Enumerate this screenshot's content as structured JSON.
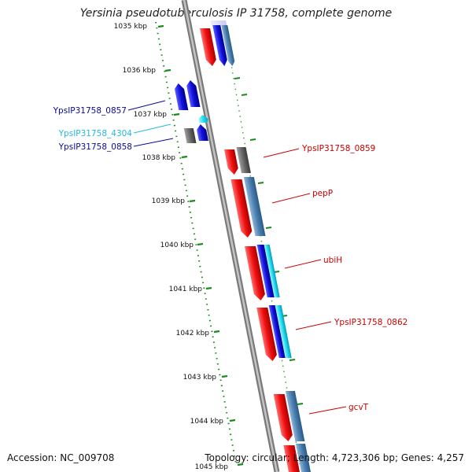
{
  "title": "Yersinia pseudotuberculosis IP 31758, complete genome",
  "footer": {
    "accession": "Accession: NC_009708",
    "stats": "Topology: circular; Length: 4,723,306 bp; Genes: 4,257"
  },
  "colors": {
    "forward_red": "#ee1111",
    "blue": "#1010dd",
    "steel_blue": "#4a7fb0",
    "cyan": "#33ccee",
    "gray": "#666666",
    "tick_green": "#1a8a1a",
    "label_red": "#cc0000",
    "label_blue": "#0a0a99",
    "label_cyan": "#22bbdd"
  },
  "kbp_ticks": [
    "1035 kbp",
    "1036 kbp",
    "1037 kbp",
    "1038 kbp",
    "1039 kbp",
    "1040 kbp",
    "1041 kbp",
    "1042 kbp",
    "1043 kbp",
    "1044 kbp",
    "1045 kbp"
  ],
  "gene_labels": {
    "left": [
      "YpsIP31758_0857",
      "YpsIP31758_4304",
      "YpsIP31758_0858"
    ],
    "right": [
      "YpsIP31758_0859",
      "pepP",
      "ubiH",
      "YpsIP31758_0862",
      "gcvT"
    ]
  }
}
